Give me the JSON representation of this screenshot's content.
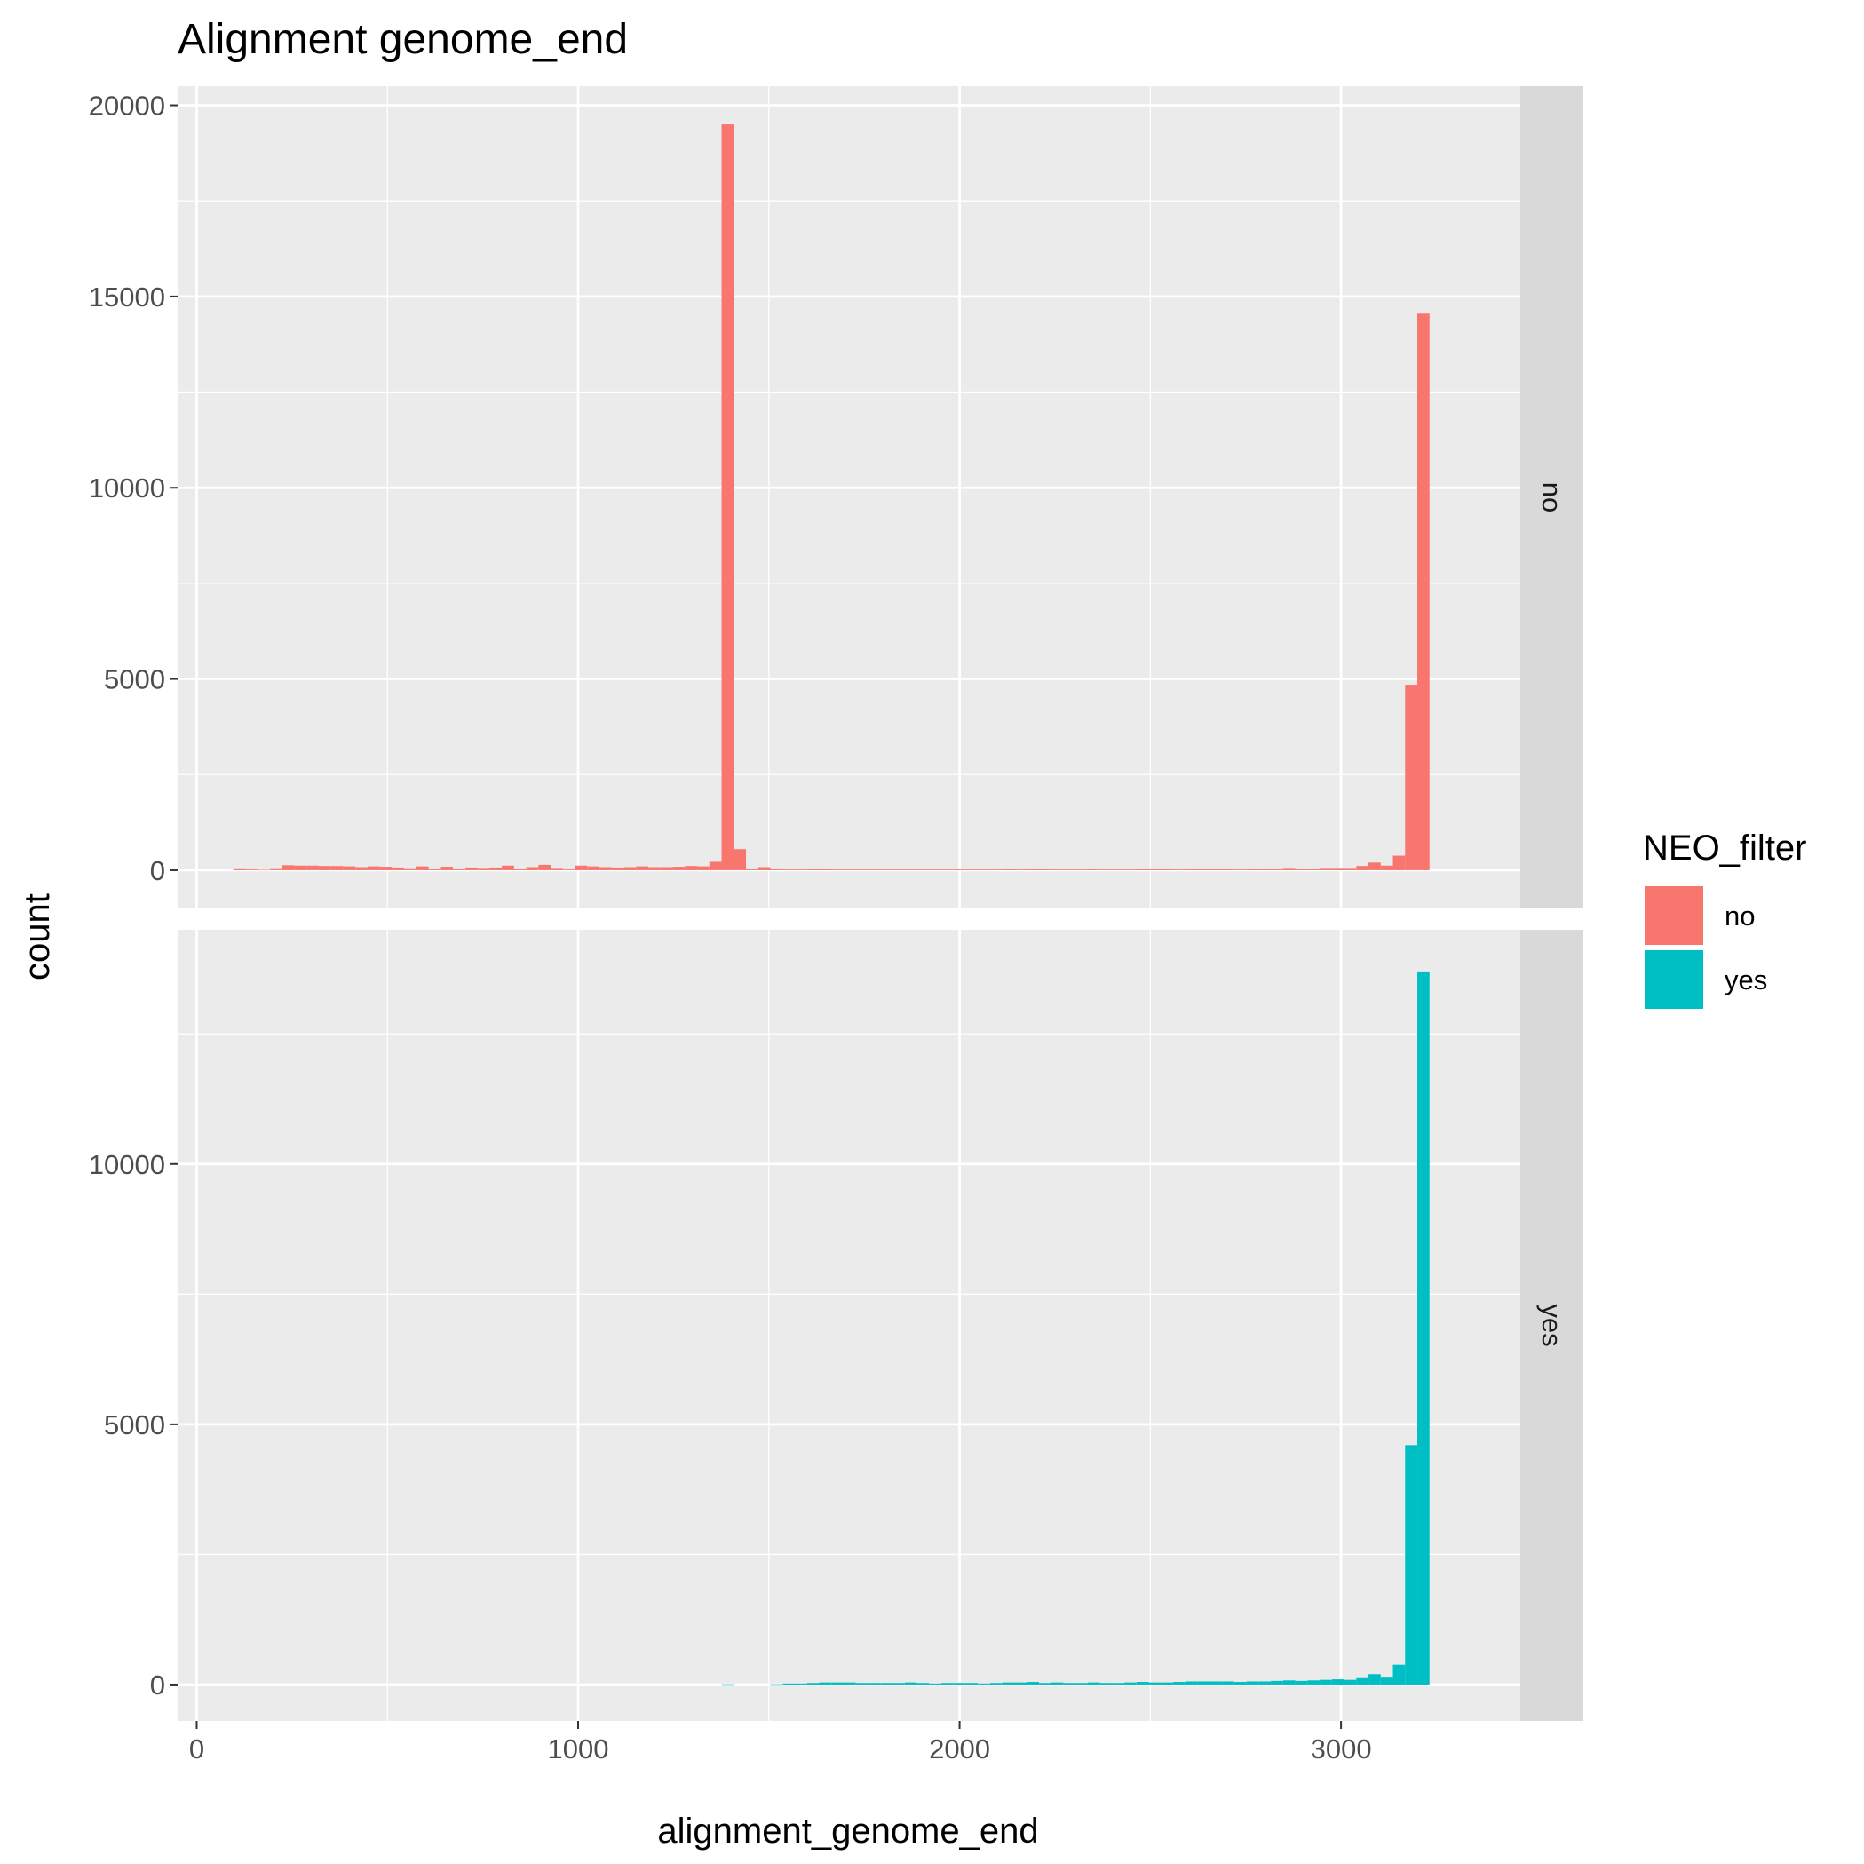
{
  "chart_data": {
    "type": "histogram",
    "title": "Alignment genome_end",
    "xlabel": "alignment_genome_end",
    "ylabel": "count",
    "x_ticks": [
      0,
      1000,
      2000,
      3000
    ],
    "xlim": [
      -50,
      3470
    ],
    "bin_width": 32,
    "grid": true,
    "facets": [
      {
        "label": "no",
        "color": "#F8766D",
        "ylim": [
          -1000,
          20500
        ],
        "y_ticks": [
          0,
          5000,
          10000,
          15000,
          20000
        ],
        "bins": [
          [
            112,
            50
          ],
          [
            144,
            20
          ],
          [
            176,
            10
          ],
          [
            208,
            50
          ],
          [
            240,
            130
          ],
          [
            272,
            120
          ],
          [
            304,
            120
          ],
          [
            336,
            110
          ],
          [
            368,
            110
          ],
          [
            400,
            100
          ],
          [
            432,
            80
          ],
          [
            464,
            100
          ],
          [
            496,
            90
          ],
          [
            528,
            70
          ],
          [
            560,
            50
          ],
          [
            592,
            100
          ],
          [
            624,
            40
          ],
          [
            656,
            90
          ],
          [
            688,
            40
          ],
          [
            720,
            70
          ],
          [
            752,
            60
          ],
          [
            784,
            70
          ],
          [
            816,
            120
          ],
          [
            848,
            40
          ],
          [
            880,
            80
          ],
          [
            912,
            140
          ],
          [
            944,
            60
          ],
          [
            976,
            20
          ],
          [
            1008,
            120
          ],
          [
            1040,
            100
          ],
          [
            1072,
            80
          ],
          [
            1104,
            70
          ],
          [
            1136,
            80
          ],
          [
            1168,
            100
          ],
          [
            1200,
            80
          ],
          [
            1232,
            80
          ],
          [
            1264,
            90
          ],
          [
            1296,
            110
          ],
          [
            1328,
            100
          ],
          [
            1360,
            220
          ],
          [
            1392,
            19500
          ],
          [
            1424,
            550
          ],
          [
            1456,
            40
          ],
          [
            1488,
            80
          ],
          [
            1520,
            30
          ],
          [
            1552,
            20
          ],
          [
            1584,
            20
          ],
          [
            1616,
            40
          ],
          [
            1648,
            40
          ],
          [
            1680,
            20
          ],
          [
            1712,
            20
          ],
          [
            1744,
            20
          ],
          [
            1776,
            20
          ],
          [
            1808,
            20
          ],
          [
            1840,
            20
          ],
          [
            1872,
            20
          ],
          [
            1904,
            20
          ],
          [
            1936,
            20
          ],
          [
            1968,
            20
          ],
          [
            2000,
            20
          ],
          [
            2032,
            20
          ],
          [
            2064,
            20
          ],
          [
            2096,
            20
          ],
          [
            2128,
            40
          ],
          [
            2160,
            20
          ],
          [
            2192,
            40
          ],
          [
            2224,
            40
          ],
          [
            2256,
            20
          ],
          [
            2288,
            20
          ],
          [
            2320,
            20
          ],
          [
            2352,
            40
          ],
          [
            2384,
            20
          ],
          [
            2416,
            20
          ],
          [
            2448,
            20
          ],
          [
            2480,
            40
          ],
          [
            2512,
            40
          ],
          [
            2544,
            40
          ],
          [
            2576,
            20
          ],
          [
            2608,
            40
          ],
          [
            2640,
            40
          ],
          [
            2672,
            40
          ],
          [
            2704,
            40
          ],
          [
            2736,
            20
          ],
          [
            2768,
            40
          ],
          [
            2800,
            40
          ],
          [
            2832,
            40
          ],
          [
            2864,
            60
          ],
          [
            2896,
            40
          ],
          [
            2928,
            40
          ],
          [
            2960,
            60
          ],
          [
            2992,
            60
          ],
          [
            3024,
            60
          ],
          [
            3056,
            110
          ],
          [
            3088,
            200
          ],
          [
            3120,
            120
          ],
          [
            3152,
            380
          ],
          [
            3184,
            4850
          ],
          [
            3216,
            14550
          ]
        ]
      },
      {
        "label": "yes",
        "color": "#00BFC4",
        "ylim": [
          -700,
          14500
        ],
        "y_ticks": [
          0,
          5000,
          10000
        ],
        "bins": [
          [
            1392,
            5
          ],
          [
            1520,
            5
          ],
          [
            1552,
            20
          ],
          [
            1584,
            20
          ],
          [
            1616,
            30
          ],
          [
            1648,
            40
          ],
          [
            1680,
            40
          ],
          [
            1712,
            40
          ],
          [
            1744,
            30
          ],
          [
            1776,
            30
          ],
          [
            1808,
            30
          ],
          [
            1840,
            30
          ],
          [
            1872,
            40
          ],
          [
            1904,
            30
          ],
          [
            1936,
            20
          ],
          [
            1968,
            30
          ],
          [
            2000,
            30
          ],
          [
            2032,
            30
          ],
          [
            2064,
            20
          ],
          [
            2096,
            30
          ],
          [
            2128,
            40
          ],
          [
            2160,
            40
          ],
          [
            2192,
            50
          ],
          [
            2224,
            30
          ],
          [
            2256,
            40
          ],
          [
            2288,
            30
          ],
          [
            2320,
            30
          ],
          [
            2352,
            40
          ],
          [
            2384,
            30
          ],
          [
            2416,
            30
          ],
          [
            2448,
            40
          ],
          [
            2480,
            50
          ],
          [
            2512,
            40
          ],
          [
            2544,
            40
          ],
          [
            2576,
            50
          ],
          [
            2608,
            60
          ],
          [
            2640,
            60
          ],
          [
            2672,
            60
          ],
          [
            2704,
            60
          ],
          [
            2736,
            50
          ],
          [
            2768,
            60
          ],
          [
            2800,
            60
          ],
          [
            2832,
            70
          ],
          [
            2864,
            80
          ],
          [
            2896,
            70
          ],
          [
            2928,
            80
          ],
          [
            2960,
            90
          ],
          [
            2992,
            100
          ],
          [
            3024,
            90
          ],
          [
            3056,
            140
          ],
          [
            3088,
            200
          ],
          [
            3120,
            150
          ],
          [
            3152,
            380
          ],
          [
            3184,
            4600
          ],
          [
            3216,
            13700
          ]
        ]
      }
    ],
    "legend": {
      "title": "NEO_filter",
      "position": "right",
      "entries": [
        {
          "label": "no",
          "color": "#F8766D"
        },
        {
          "label": "yes",
          "color": "#00BFC4"
        }
      ]
    }
  }
}
